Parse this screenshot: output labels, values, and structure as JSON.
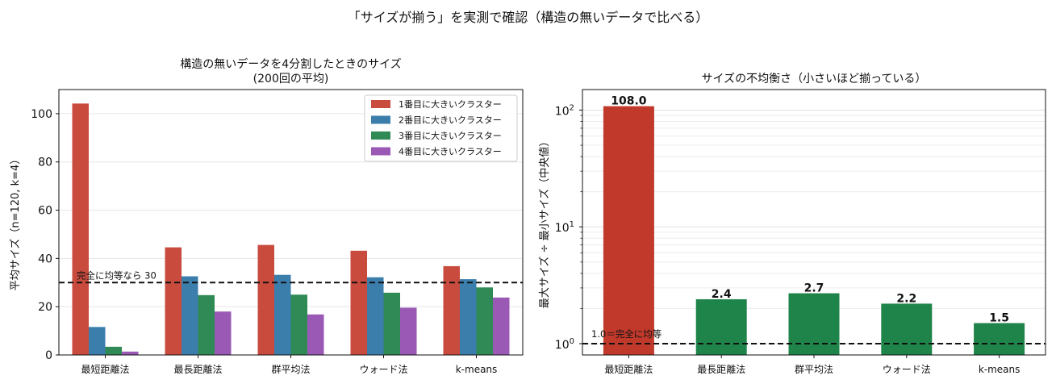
{
  "figure": {
    "suptitle": "「サイズが揃う」を実測で確認（構造の無いデータで比べる）"
  },
  "chart_data": [
    {
      "type": "bar",
      "title_lines": [
        "構造の無いデータを4分割したときのサイズ",
        "(200回の平均)"
      ],
      "xlabel": "",
      "ylabel": "平均サイズ（n=120, k=4）",
      "ylim": [
        0,
        110
      ],
      "yticks": [
        0,
        20,
        40,
        60,
        80,
        100
      ],
      "grid": "y",
      "legend_placement": "top-right",
      "categories": [
        "最短距離法",
        "最長距離法",
        "群平均法",
        "ウォード法",
        "k-means"
      ],
      "series": [
        {
          "name": "1番目に大きいクラスター",
          "color": "#c84b3e",
          "values": [
            104.2,
            44.6,
            45.6,
            43.2,
            36.8
          ]
        },
        {
          "name": "2番目に大きいクラスター",
          "color": "#3b7eac",
          "values": [
            11.6,
            32.6,
            33.2,
            32.2,
            31.4
          ]
        },
        {
          "name": "3番目に大きいクラスター",
          "color": "#2f8a55",
          "values": [
            3.4,
            24.8,
            25.0,
            25.8,
            28.0
          ]
        },
        {
          "name": "4番目に大きいクラスター",
          "color": "#9b59b6",
          "values": [
            1.4,
            18.0,
            16.8,
            19.6,
            23.8
          ]
        }
      ],
      "reference_line": {
        "value": 30,
        "label": "完全に均等なら 30"
      }
    },
    {
      "type": "bar",
      "title": "サイズの不均衡さ（小さいほど揃っている）",
      "xlabel": "",
      "ylabel": "最大サイズ ÷ 最小サイズ（中央値）",
      "yscale": "log",
      "ylim": [
        0.8,
        150
      ],
      "yticks": [
        {
          "value": 1,
          "base": "10",
          "exp": "0"
        },
        {
          "value": 10,
          "base": "10",
          "exp": "1"
        },
        {
          "value": 100,
          "base": "10",
          "exp": "2"
        }
      ],
      "grid": "y",
      "categories": [
        "最短距離法",
        "最長距離法",
        "群平均法",
        "ウォード法",
        "k-means"
      ],
      "values": [
        108.0,
        2.4,
        2.7,
        2.2,
        1.5
      ],
      "value_labels": [
        "108.0",
        "2.4",
        "2.7",
        "2.2",
        "1.5"
      ],
      "colors": [
        "#c0392b",
        "#1e8449",
        "#1e8449",
        "#1e8449",
        "#1e8449"
      ],
      "reference_line": {
        "value": 1,
        "label": "1.0＝完全に均等"
      }
    }
  ]
}
